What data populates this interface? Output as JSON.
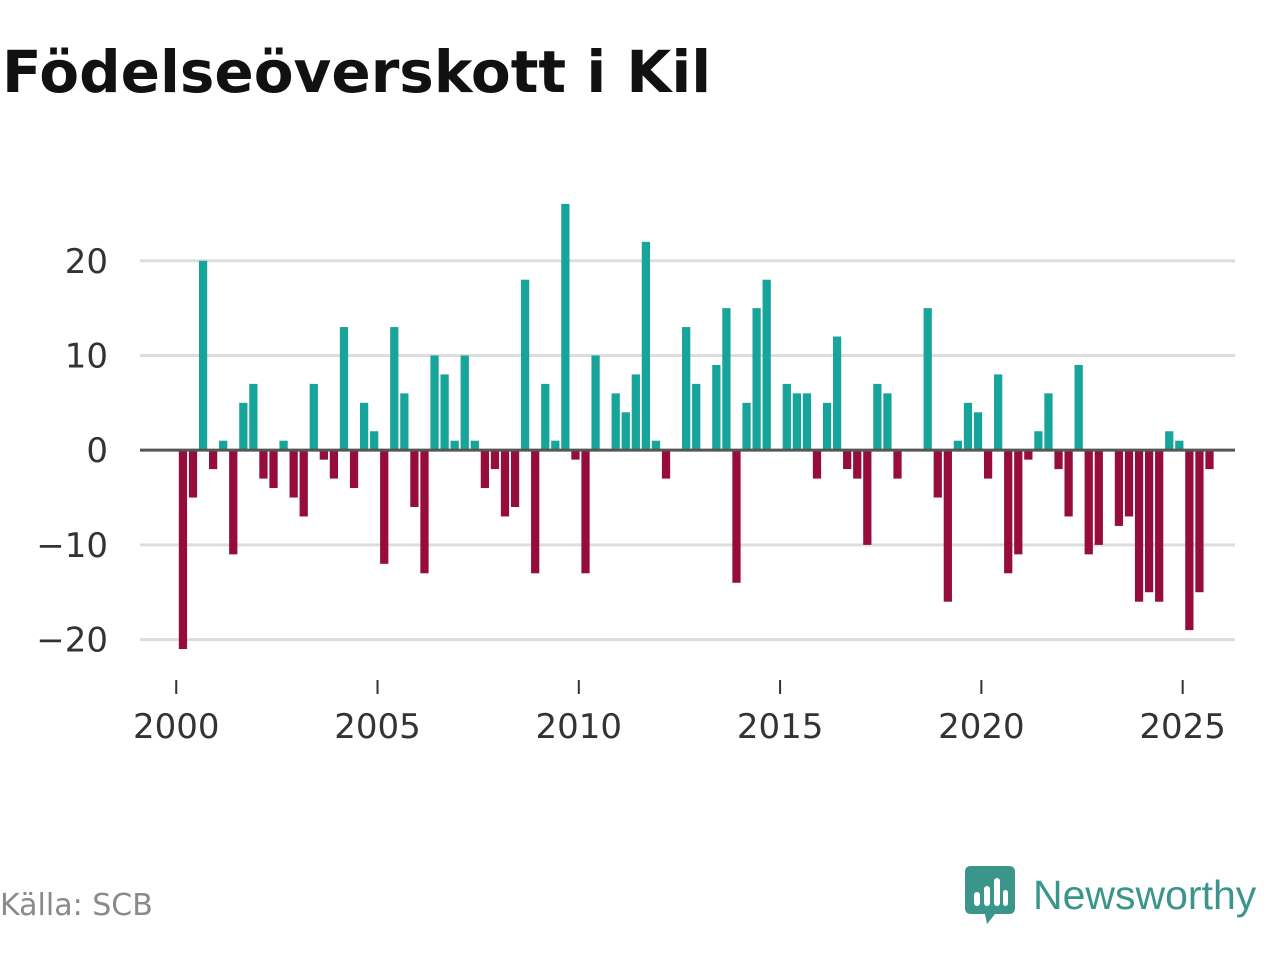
{
  "title": "Födelseöverskott i Kil",
  "source": "Källa: SCB",
  "brand": {
    "name": "Newsworthy",
    "logo_icon": "newsworthy-chart-bubble-icon"
  },
  "colors": {
    "positive": "#17a49a",
    "negative": "#960c3c",
    "grid": "#dddddd",
    "zero_line": "#555555",
    "text": "#333333",
    "brand": "#3a958b"
  },
  "chart_data": {
    "type": "bar",
    "title": "Födelseöverskott i Kil",
    "xlabel": "",
    "ylabel": "",
    "ylim": [
      -23,
      28
    ],
    "xlim": [
      1999.1,
      2026.3
    ],
    "yticks": [
      -20,
      -10,
      0,
      10,
      20
    ],
    "ytick_labels": [
      "−20",
      "−10",
      "0",
      "10",
      "20"
    ],
    "xticks": [
      2000,
      2005,
      2010,
      2015,
      2020,
      2025
    ],
    "xtick_labels": [
      "2000",
      "2005",
      "2010",
      "2015",
      "2020",
      "2025"
    ],
    "grid": true,
    "frequency": "monthly-quarterly",
    "start": 2000.1667,
    "step": 0.25,
    "values": [
      -21,
      -5,
      20,
      -2,
      1,
      -11,
      5,
      7,
      -3,
      -4,
      1,
      -5,
      -7,
      7,
      -1,
      -3,
      13,
      -4,
      5,
      2,
      -12,
      13,
      6,
      -6,
      -13,
      10,
      8,
      1,
      10,
      1,
      -4,
      -2,
      -7,
      -6,
      18,
      -13,
      7,
      1,
      26,
      -1,
      -13,
      10,
      0,
      6,
      4,
      8,
      22,
      1,
      -3,
      0,
      13,
      7,
      0,
      9,
      15,
      -14,
      5,
      15,
      18,
      0,
      7,
      6,
      6,
      -3,
      5,
      12,
      -2,
      -3,
      -10,
      7,
      6,
      -3,
      0,
      0,
      15,
      -5,
      -16,
      1,
      5,
      4,
      -3,
      8,
      -13,
      -11,
      -1,
      2,
      6,
      -2,
      -7,
      9,
      -11,
      -10,
      0,
      -8,
      -7,
      -16,
      -15,
      -16,
      2,
      1,
      -19,
      -15,
      -2
    ]
  }
}
